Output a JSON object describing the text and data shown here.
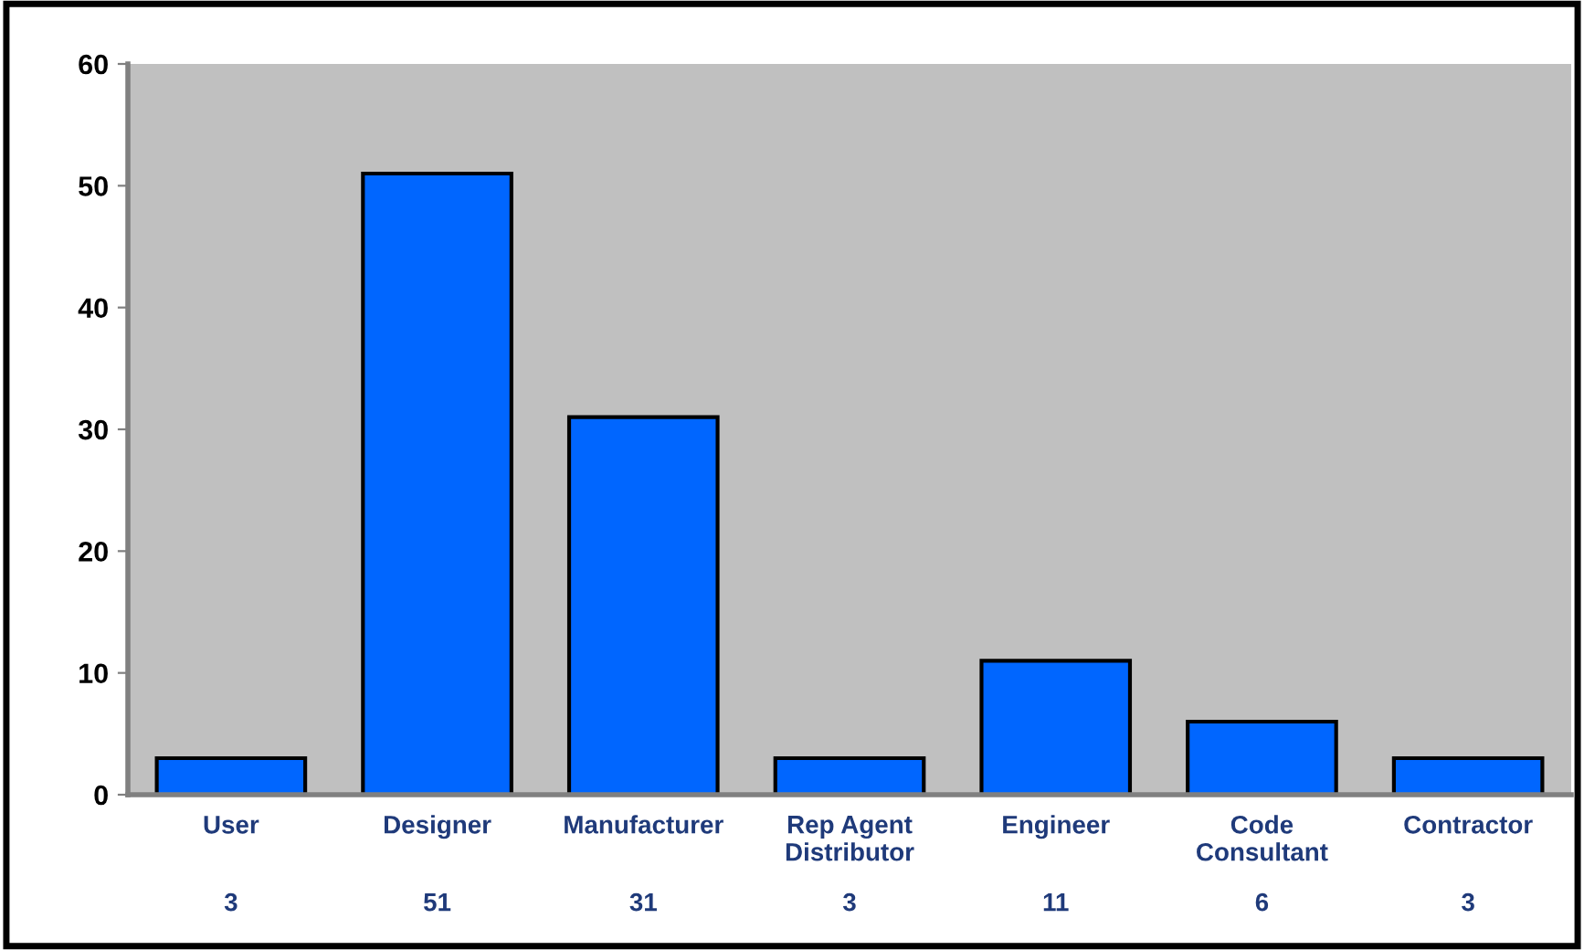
{
  "chart_data": {
    "type": "bar",
    "categories": [
      "User",
      "Designer",
      "Manufacturer",
      "Rep Agent\nDistributor",
      "Engineer",
      "Code\nConsultant",
      "Contractor"
    ],
    "values": [
      3,
      51,
      31,
      3,
      11,
      6,
      3
    ],
    "color": "#0066ff",
    "ylim": [
      0,
      60
    ],
    "yticks": [
      0,
      10,
      20,
      30,
      40,
      50,
      60
    ],
    "grid": false,
    "legend": false,
    "data_labels": true
  }
}
